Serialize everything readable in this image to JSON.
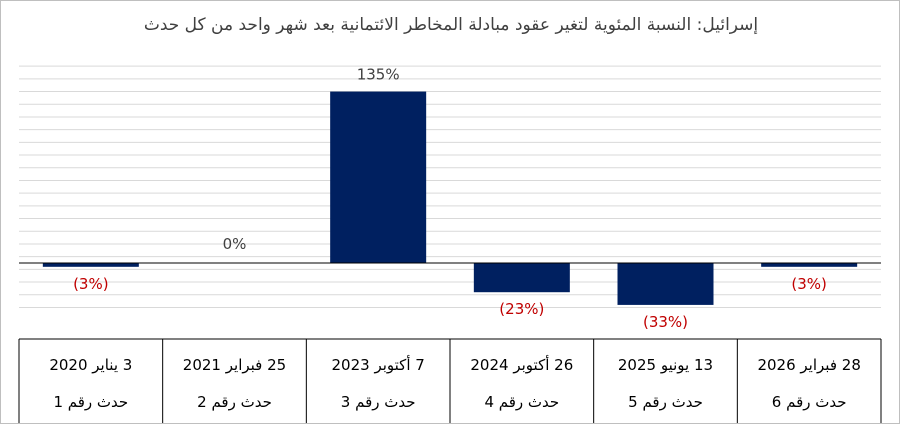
{
  "chart_data": {
    "type": "bar",
    "title": "إسرائيل: النسبة المئوية لتغير عقود مبادلة المخاطر الائتمانية بعد شهر واحد من كل حدث",
    "categories": [
      {
        "date": "3 يناير 2020",
        "event": "حدث رقم 1"
      },
      {
        "date": "25 فبراير 2021",
        "event": "حدث رقم 2"
      },
      {
        "date": "7 أكتوبر 2023",
        "event": "حدث رقم 3"
      },
      {
        "date": "26 أكتوبر 2024",
        "event": "حدث رقم 4"
      },
      {
        "date": "13 يونيو 2025",
        "event": "حدث رقم 5"
      },
      {
        "date": "28 فبراير 2026",
        "event": "حدث رقم 6"
      }
    ],
    "values": [
      -3,
      0,
      135,
      -23,
      -33,
      -3
    ],
    "data_labels": [
      "(3%)",
      "0%",
      "135%",
      "(23%)",
      "(33%)",
      "(3%)"
    ],
    "ylim": [
      -40,
      160
    ],
    "grid": true,
    "colors": {
      "bar": "#002060",
      "positive_label": "#404040",
      "negative_label": "#c00000",
      "grid": "#d9d9d9",
      "axis": "#000000"
    }
  }
}
